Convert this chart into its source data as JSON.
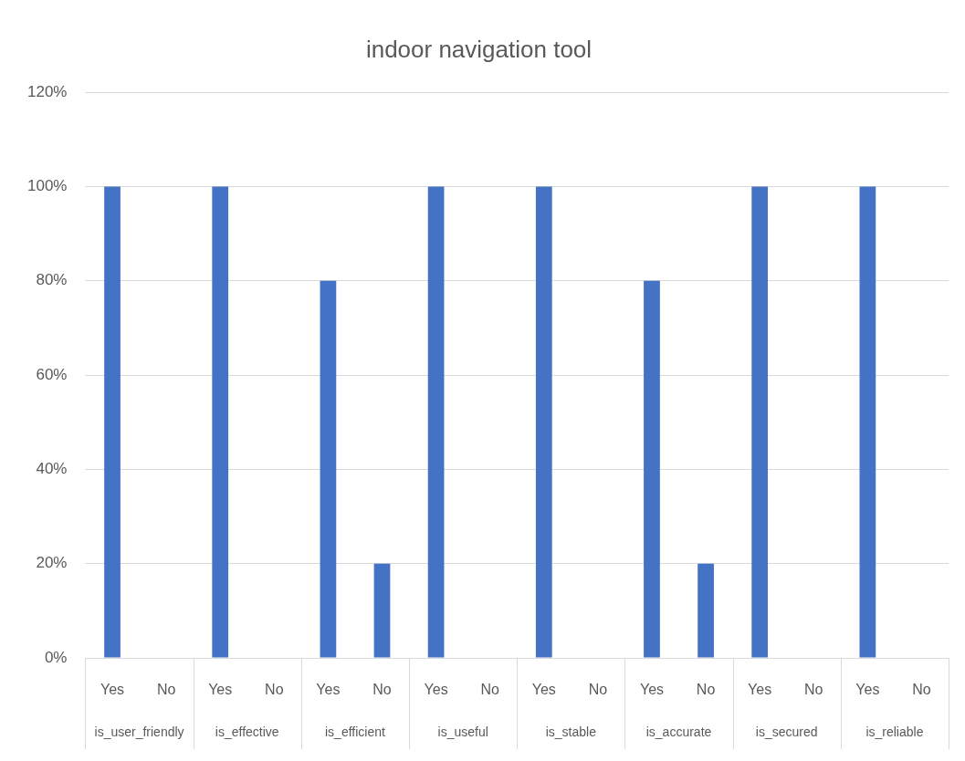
{
  "chart_data": {
    "type": "bar",
    "title": "indoor navigation tool",
    "categories": [
      "is_user_friendly",
      "is_effective",
      "is_efficient",
      "is_useful",
      "is_stable",
      "is_accurate",
      "is_secured",
      "is_reliable"
    ],
    "series": [
      {
        "name": "Yes",
        "color": "#4472c4",
        "values": [
          100,
          100,
          80,
          100,
          100,
          80,
          100,
          100
        ]
      },
      {
        "name": "No",
        "color": "#4472c4",
        "values": [
          0,
          0,
          20,
          0,
          0,
          20,
          0,
          0
        ]
      }
    ],
    "ylim": [
      0,
      120
    ],
    "yticks": [
      {
        "value": 0,
        "label": "0%"
      },
      {
        "value": 20,
        "label": "20%"
      },
      {
        "value": 40,
        "label": "40%"
      },
      {
        "value": 60,
        "label": "60%"
      },
      {
        "value": 80,
        "label": "80%"
      },
      {
        "value": 100,
        "label": "100%"
      },
      {
        "value": 120,
        "label": "120%"
      }
    ],
    "grid": "y",
    "legend": false
  }
}
